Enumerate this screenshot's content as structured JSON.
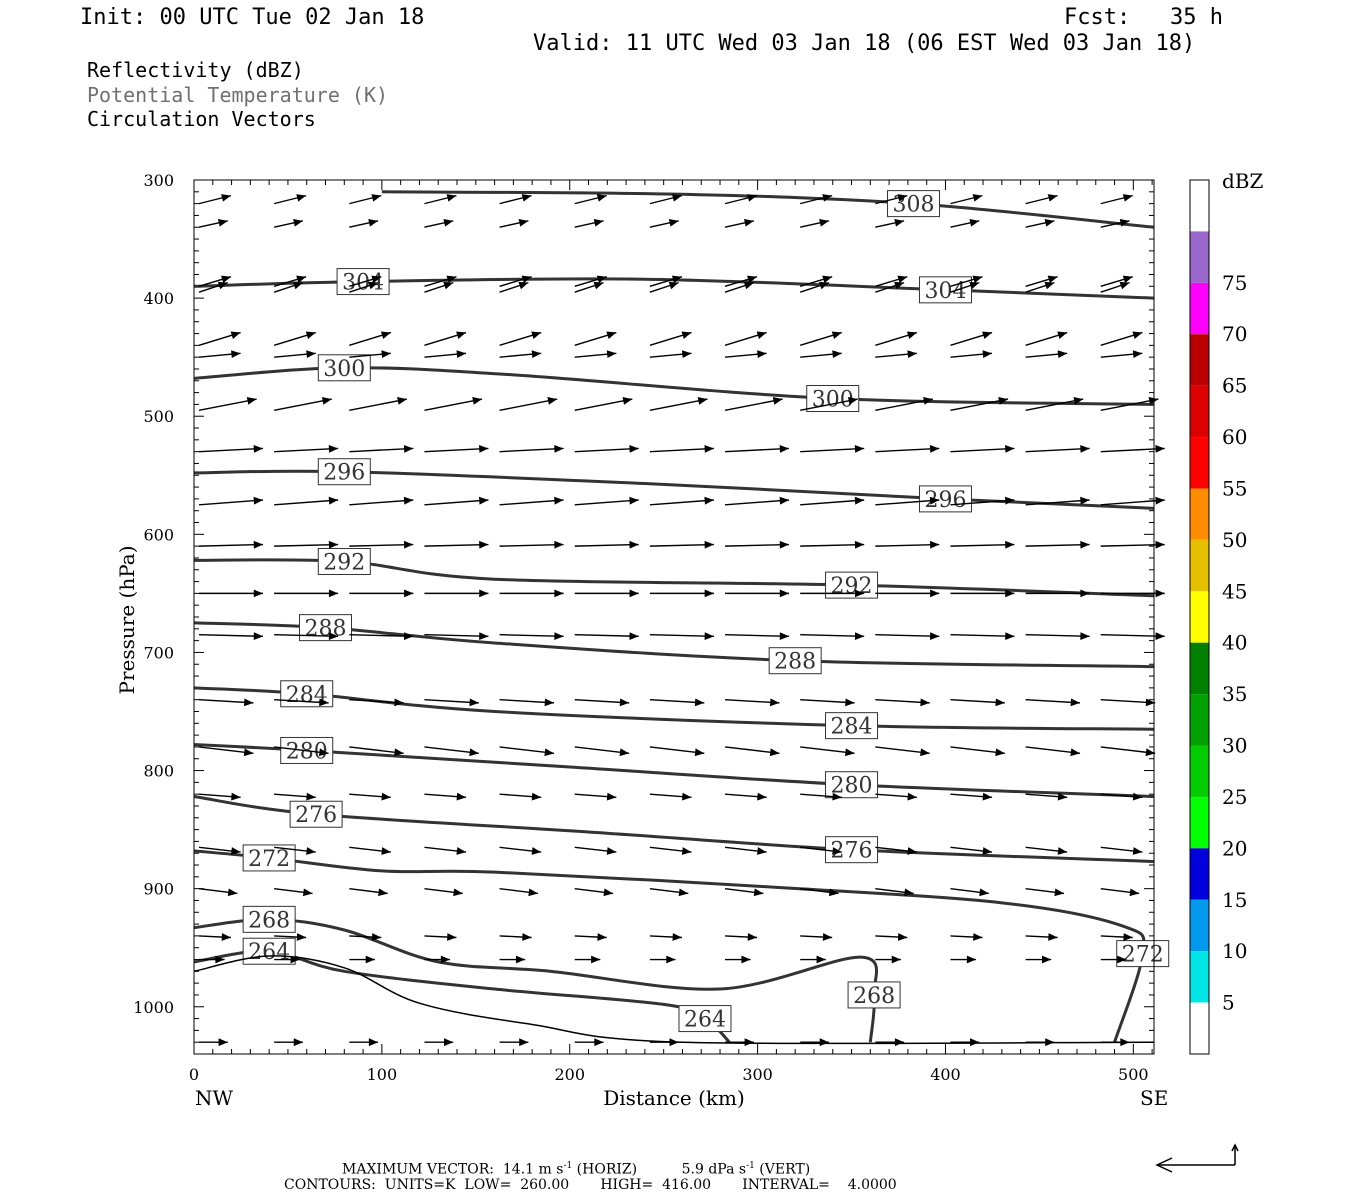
{
  "header": {
    "init": "Init: 00 UTC Tue 02 Jan 18",
    "fcst": "Fcst:   35 h",
    "valid": "Valid: 11 UTC Wed 03 Jan 18 (06 EST Wed 03 Jan 18)"
  },
  "legend": {
    "line1": "Reflectivity (dBZ)",
    "line2": "Potential Temperature (K)",
    "line3": "Circulation Vectors",
    "line2_color": "#707070"
  },
  "footer": {
    "max_vector_label": "MAXIMUM VECTOR:",
    "max_horiz": "14.1 m s",
    "horiz_tag": "(HORIZ)",
    "max_vert": "5.9 dPa s",
    "vert_tag": "(VERT)",
    "exp": "-1",
    "contours": "CONTOURS:  UNITS=K  LOW=  260.00       HIGH=  416.00       INTERVAL=    4.0000"
  },
  "chart_data": {
    "type": "cross-section contour",
    "xlabel": "Distance (km)",
    "ylabel": "Pressure (hPa)",
    "x_left_end_label": "NW",
    "x_right_end_label": "SE",
    "xlim": [
      0,
      511
    ],
    "ylim": [
      300,
      1040
    ],
    "x_ticks": [
      "0",
      "100",
      "200",
      "300",
      "400",
      "500"
    ],
    "y_ticks": [
      "300",
      "400",
      "500",
      "600",
      "700",
      "800",
      "900",
      "1000"
    ],
    "colorbar": {
      "unit": "dBZ",
      "labels": [
        "5",
        "10",
        "15",
        "20",
        "25",
        "30",
        "35",
        "40",
        "45",
        "50",
        "55",
        "60",
        "65",
        "70",
        "75"
      ],
      "colors": [
        "#ffffff",
        "#00e5e5",
        "#0099ee",
        "#0000dd",
        "#00ff00",
        "#00cc00",
        "#00a000",
        "#008000",
        "#ffff00",
        "#e6c000",
        "#ff8c00",
        "#ff0000",
        "#dd0000",
        "#bb0000",
        "#ff00ff",
        "#9966cc",
        "#ffffff"
      ]
    },
    "theta_contours": [
      {
        "label": "308",
        "points": [
          [
            100,
            310
          ],
          [
            256,
            312
          ],
          [
            383,
            320
          ],
          [
            511,
            340
          ]
        ]
      },
      {
        "label": "304",
        "points": [
          [
            0,
            390
          ],
          [
            90,
            386
          ],
          [
            240,
            384
          ],
          [
            400,
            393
          ],
          [
            511,
            400
          ]
        ]
      },
      {
        "label": "300",
        "points": [
          [
            0,
            468
          ],
          [
            80,
            459
          ],
          [
            170,
            465
          ],
          [
            340,
            485
          ],
          [
            511,
            490
          ]
        ]
      },
      {
        "label": "296",
        "points": [
          [
            0,
            548
          ],
          [
            80,
            547
          ],
          [
            240,
            557
          ],
          [
            400,
            570
          ],
          [
            511,
            578
          ]
        ]
      },
      {
        "label": "292",
        "points": [
          [
            0,
            622
          ],
          [
            80,
            623
          ],
          [
            160,
            638
          ],
          [
            350,
            643
          ],
          [
            511,
            652
          ]
        ]
      },
      {
        "label": "288",
        "points": [
          [
            0,
            675
          ],
          [
            70,
            679
          ],
          [
            160,
            692
          ],
          [
            320,
            707
          ],
          [
            511,
            712
          ]
        ]
      },
      {
        "label": "284",
        "points": [
          [
            0,
            730
          ],
          [
            60,
            735
          ],
          [
            160,
            750
          ],
          [
            350,
            762
          ],
          [
            511,
            765
          ]
        ]
      },
      {
        "label": "280",
        "points": [
          [
            0,
            778
          ],
          [
            60,
            783
          ],
          [
            200,
            797
          ],
          [
            350,
            812
          ],
          [
            511,
            822
          ]
        ]
      },
      {
        "label": "276",
        "points": [
          [
            0,
            822
          ],
          [
            65,
            837
          ],
          [
            210,
            852
          ],
          [
            350,
            867
          ],
          [
            511,
            877
          ]
        ]
      },
      {
        "label": "272",
        "points": [
          [
            0,
            868
          ],
          [
            40,
            874
          ],
          [
            100,
            885
          ],
          [
            160,
            886
          ],
          [
            300,
            898
          ],
          [
            430,
            912
          ],
          [
            495,
            932
          ],
          [
            505,
            955
          ],
          [
            490,
            1030
          ]
        ]
      },
      {
        "label": "268",
        "points": [
          [
            0,
            933
          ],
          [
            40,
            926
          ],
          [
            80,
            935
          ],
          [
            130,
            962
          ],
          [
            190,
            970
          ],
          [
            280,
            985
          ],
          [
            355,
            958
          ],
          [
            362,
            990
          ],
          [
            360,
            1030
          ]
        ]
      },
      {
        "label": "264",
        "points": [
          [
            0,
            962
          ],
          [
            40,
            953
          ],
          [
            80,
            970
          ],
          [
            160,
            985
          ],
          [
            250,
            998
          ],
          [
            272,
            1010
          ],
          [
            285,
            1030
          ]
        ]
      }
    ],
    "surface": {
      "points": [
        [
          0,
          970
        ],
        [
          40,
          957
        ],
        [
          80,
          967
        ],
        [
          120,
          997
        ],
        [
          180,
          1015
        ],
        [
          260,
          1030
        ],
        [
          511,
          1030
        ]
      ]
    },
    "vector_rows": [
      {
        "p": 320,
        "u": 1.0,
        "v": -0.25
      },
      {
        "p": 340,
        "u": 0.9,
        "v": -0.2
      },
      {
        "p": 390,
        "u": 1.0,
        "v": -0.3
      },
      {
        "p": 395,
        "u": 0.9,
        "v": -0.3
      },
      {
        "p": 440,
        "u": 1.3,
        "v": -0.4
      },
      {
        "p": 450,
        "u": 1.3,
        "v": -0.12
      },
      {
        "p": 495,
        "u": 1.8,
        "v": -0.35
      },
      {
        "p": 530,
        "u": 2.0,
        "v": -0.1
      },
      {
        "p": 575,
        "u": 2.0,
        "v": -0.15
      },
      {
        "p": 610,
        "u": 2.0,
        "v": -0.05
      },
      {
        "p": 650,
        "u": 2.0,
        "v": 0.0
      },
      {
        "p": 685,
        "u": 2.0,
        "v": 0.05
      },
      {
        "p": 740,
        "u": 1.7,
        "v": 0.1
      },
      {
        "p": 780,
        "u": 1.7,
        "v": 0.2
      },
      {
        "p": 820,
        "u": 1.3,
        "v": 0.1
      },
      {
        "p": 865,
        "u": 1.3,
        "v": 0.15
      },
      {
        "p": 900,
        "u": 1.2,
        "v": 0.15
      },
      {
        "p": 940,
        "u": 1.0,
        "v": 0.05
      },
      {
        "p": 960,
        "u": 0.8,
        "v": 0.0
      },
      {
        "p": 1030,
        "u": 0.9,
        "v": 0.0
      }
    ]
  }
}
